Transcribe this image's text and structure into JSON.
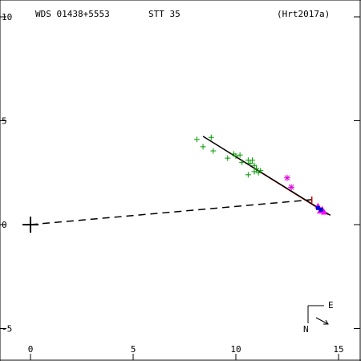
{
  "header": {
    "wds": "WDS 01438+5553",
    "disc": "STT  35",
    "ref": "(Hrt2017a)"
  },
  "compass": {
    "north": "N",
    "east": "E"
  },
  "chart_data": {
    "type": "scatter",
    "title": "",
    "xlabel": "",
    "ylabel": "",
    "xlim": [
      -1.5,
      16
    ],
    "ylim": [
      -6.6,
      11
    ],
    "x_ticks": [
      0,
      5,
      10,
      15
    ],
    "y_ticks": [
      10,
      5,
      0,
      -5
    ],
    "x_tick_labels": [
      "0",
      "5",
      "10",
      "15"
    ],
    "y_tick_labels": [
      "10",
      "5",
      "0",
      "-5"
    ],
    "grid": false,
    "primary": {
      "x": 0,
      "y": 0
    },
    "orbit_fit_line": [
      [
        8.4,
        4.25
      ],
      [
        14.6,
        0.45
      ]
    ],
    "alt_fit_line": [
      [
        9.6,
        3.5
      ],
      [
        14.5,
        0.48
      ]
    ],
    "periastron_line": [
      [
        0,
        0
      ],
      [
        13.7,
        1.2
      ]
    ],
    "node_mark": {
      "x": 13.7,
      "y": 1.2
    },
    "series": [
      {
        "marker": "plus",
        "color": "#009900",
        "points": [
          [
            8.1,
            4.1
          ],
          [
            8.4,
            3.75
          ],
          [
            8.8,
            4.2
          ],
          [
            8.9,
            3.55
          ],
          [
            9.6,
            3.2
          ],
          [
            9.9,
            3.4
          ],
          [
            10.0,
            3.3
          ],
          [
            10.2,
            3.35
          ],
          [
            10.3,
            3.0
          ],
          [
            10.6,
            3.1
          ],
          [
            10.7,
            2.95
          ],
          [
            10.8,
            3.1
          ],
          [
            10.9,
            2.85
          ],
          [
            11.0,
            2.7
          ],
          [
            11.1,
            2.5
          ],
          [
            10.9,
            2.55
          ],
          [
            10.6,
            2.4
          ],
          [
            11.2,
            2.6
          ]
        ]
      },
      {
        "marker": "asterisk",
        "color": "#dd00dd",
        "points": [
          [
            12.5,
            2.25
          ],
          [
            12.7,
            1.8
          ]
        ]
      },
      {
        "marker": "triangle",
        "color": "#ff00ff",
        "points": [
          [
            14.0,
            0.9
          ],
          [
            14.1,
            0.65
          ],
          [
            14.3,
            0.6
          ],
          [
            14.2,
            0.75
          ]
        ]
      },
      {
        "marker": "square",
        "color": "#0000cc",
        "points": [
          [
            14.0,
            0.8
          ],
          [
            14.15,
            0.72
          ]
        ]
      }
    ]
  }
}
